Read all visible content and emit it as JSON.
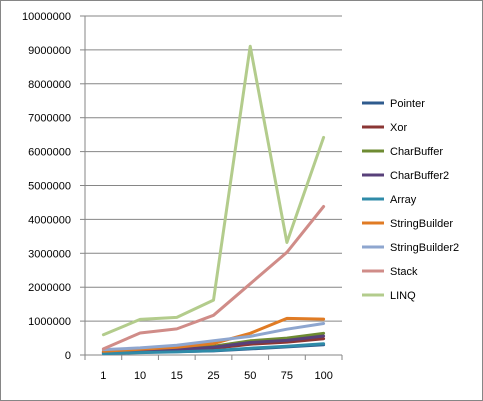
{
  "chart_data": {
    "type": "line",
    "categories": [
      "1",
      "10",
      "15",
      "25",
      "50",
      "75",
      "100"
    ],
    "ylim": [
      0,
      10000000
    ],
    "y_ticks": [
      "0",
      "1000000",
      "2000000",
      "3000000",
      "4000000",
      "5000000",
      "6000000",
      "7000000",
      "8000000",
      "9000000",
      "10000000"
    ],
    "grid": "horizontal",
    "legend": "right",
    "series": [
      {
        "name": "Pointer",
        "color": "#2f5b8e",
        "values": [
          50000,
          80000,
          100000,
          120000,
          180000,
          240000,
          300000
        ]
      },
      {
        "name": "Xor",
        "color": "#8b3634",
        "values": [
          60000,
          100000,
          140000,
          200000,
          320000,
          380000,
          480000
        ]
      },
      {
        "name": "CharBuffer",
        "color": "#6e8b32",
        "values": [
          90000,
          140000,
          180000,
          260000,
          420000,
          500000,
          640000
        ]
      },
      {
        "name": "CharBuffer2",
        "color": "#58407a",
        "values": [
          70000,
          110000,
          160000,
          230000,
          370000,
          430000,
          560000
        ]
      },
      {
        "name": "Array",
        "color": "#2f8ba8",
        "values": [
          40000,
          70000,
          90000,
          130000,
          200000,
          260000,
          330000
        ]
      },
      {
        "name": "StringBuilder",
        "color": "#e07b24",
        "values": [
          110000,
          170000,
          230000,
          340000,
          640000,
          1080000,
          1060000
        ]
      },
      {
        "name": "StringBuilder2",
        "color": "#8ea6cf",
        "values": [
          160000,
          210000,
          290000,
          420000,
          550000,
          760000,
          930000
        ]
      },
      {
        "name": "Stack",
        "color": "#d08c88",
        "values": [
          180000,
          650000,
          770000,
          1170000,
          2100000,
          3030000,
          4380000
        ]
      },
      {
        "name": "LINQ",
        "color": "#b3cc8c",
        "values": [
          600000,
          1050000,
          1110000,
          1620000,
          9110000,
          3320000,
          6420000
        ]
      }
    ]
  }
}
